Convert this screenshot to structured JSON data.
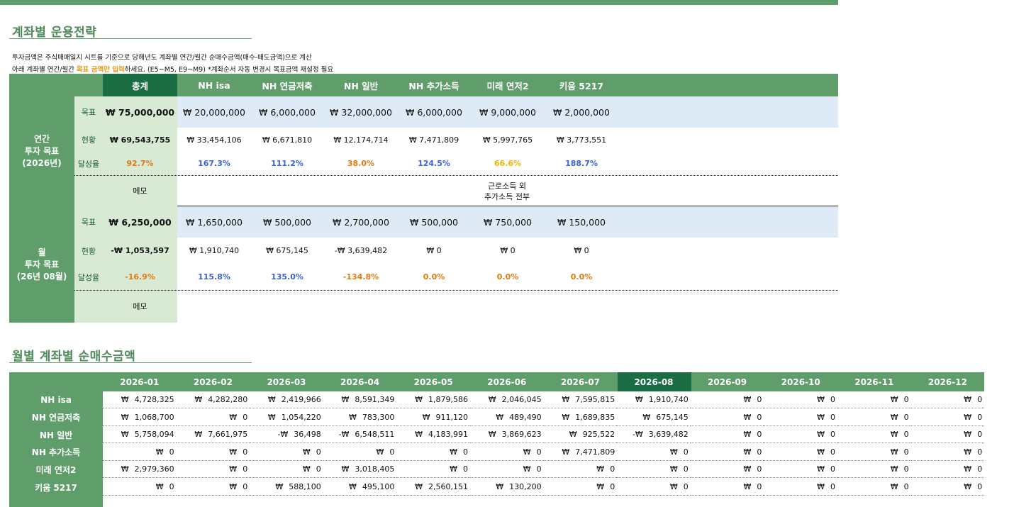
{
  "section1_title": "계좌별 운용전략",
  "note_line1": "투자금액은 주식매매일지 시트를 기준으로 당해년도 계좌별 연간/월간 순매수금액(매수-매도금액)으로 계산",
  "note_line2_pre": "아래 계좌별 연간/월간 ",
  "note_line2_hl": "목표 금액만 입력",
  "note_line2_post": "하세요. (E5~M5, E9~M9)  *계좌순서 자동 변경시 목표금액 재설정 필요",
  "headers": [
    "총계",
    "NH isa",
    "NH 연금저축",
    "NH 일반",
    "NH 추가소득",
    "미래 연저2",
    "키움 5217"
  ],
  "row_labels": {
    "goal": "목표",
    "current": "현황",
    "rate": "달성율",
    "memo": "메모"
  },
  "annual": {
    "label": [
      "연간",
      "투자 목표",
      "(2026년)"
    ],
    "goal": [
      "₩ 75,000,000",
      "₩ 20,000,000",
      "₩ 6,000,000",
      "₩ 32,000,000",
      "₩ 6,000,000",
      "₩ 9,000,000",
      "₩ 2,000,000"
    ],
    "current": [
      "₩ 69,543,755",
      "₩ 33,454,106",
      "₩ 6,671,810",
      "₩ 12,174,714",
      "₩ 7,471,809",
      "₩ 5,997,765",
      "₩ 3,773,551"
    ],
    "rate": [
      "92.7%",
      "167.3%",
      "111.2%",
      "38.0%",
      "124.5%",
      "66.6%",
      "188.7%"
    ],
    "memo_note": [
      "근로소득 외",
      "추가소득 전부"
    ]
  },
  "monthly": {
    "label": [
      "월",
      "투자 목표",
      "(26년 08월)"
    ],
    "goal": [
      "₩ 6,250,000",
      "₩ 1,650,000",
      "₩ 500,000",
      "₩ 2,700,000",
      "₩ 500,000",
      "₩ 750,000",
      "₩ 150,000"
    ],
    "current": [
      "-₩ 1,053,597",
      "₩ 1,910,740",
      "₩ 675,145",
      "-₩ 3,639,482",
      "₩ 0",
      "₩ 0",
      "₩ 0"
    ],
    "rate": [
      "-16.9%",
      "115.8%",
      "135.0%",
      "-134.8%",
      "0.0%",
      "0.0%",
      "0.0%"
    ]
  },
  "colors": {
    "rate_blue": "#3a63d6",
    "rate_orange": "#e07a12",
    "rate_yellow": "#f0b400",
    "header_green": "#5f9e6a",
    "header_dark": "#1b6e44"
  },
  "section2_title": "월별 계좌별 순매수금액",
  "months": [
    "2026-01",
    "2026-02",
    "2026-03",
    "2026-04",
    "2026-05",
    "2026-06",
    "2026-07",
    "2026-08",
    "2026-09",
    "2026-10",
    "2026-11",
    "2026-12"
  ],
  "accounts": [
    {
      "name": "NH isa",
      "values": [
        "4,728,325",
        "4,282,280",
        "2,419,966",
        "8,591,349",
        "1,879,586",
        "2,046,045",
        "7,595,815",
        "1,910,740",
        "0",
        "0",
        "0",
        "0"
      ]
    },
    {
      "name": "NH 연금저축",
      "values": [
        "1,068,700",
        "0",
        "1,054,220",
        "783,300",
        "911,120",
        "489,490",
        "1,689,835",
        "675,145",
        "0",
        "0",
        "0",
        "0"
      ]
    },
    {
      "name": "NH 일반",
      "values": [
        "5,758,094",
        "7,661,975",
        "-36,498",
        "-6,548,511",
        "4,183,991",
        "3,869,623",
        "925,522",
        "-3,639,482",
        "0",
        "0",
        "0",
        "0"
      ]
    },
    {
      "name": "NH 추가소득",
      "values": [
        "0",
        "0",
        "0",
        "0",
        "0",
        "0",
        "7,471,809",
        "0",
        "0",
        "0",
        "0",
        "0"
      ]
    },
    {
      "name": "미래 연저2",
      "values": [
        "2,979,360",
        "0",
        "0",
        "3,018,405",
        "0",
        "0",
        "0",
        "0",
        "0",
        "0",
        "0",
        "0"
      ]
    },
    {
      "name": "키움 5217",
      "values": [
        "0",
        "0",
        "588,100",
        "495,100",
        "2,560,151",
        "130,200",
        "0",
        "0",
        "0",
        "0",
        "0",
        "0"
      ]
    }
  ]
}
